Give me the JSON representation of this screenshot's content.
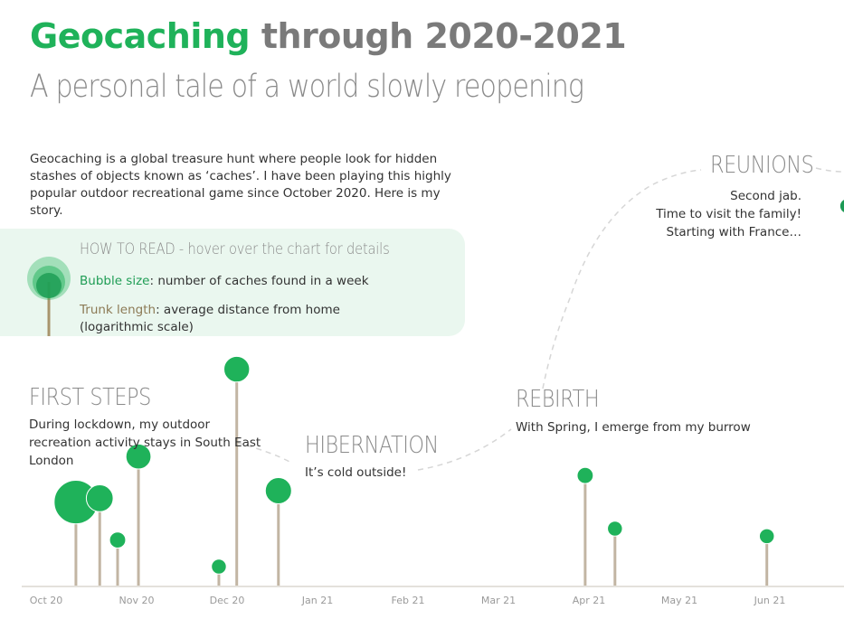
{
  "header": {
    "title_brand": "Geocaching",
    "title_rest": " through 2020-2021",
    "subtitle": "A personal tale of a world slowly reopening"
  },
  "intro": "Geocaching is a global treasure hunt where people look for hidden stashes of objects known as ‘caches’. I have been playing this highly popular outdoor recreational game since October 2020. Here is my story.",
  "howto": {
    "title": "HOW TO READ - hover over the chart for details",
    "size_key": "Bubble size",
    "size_text": ": number of caches found in a week",
    "trunk_key": "Trunk length",
    "trunk_text": ": average distance from home (logarithmic scale)"
  },
  "annotations": {
    "first_steps": {
      "heading": "FIRST STEPS",
      "text": "During lockdown, my outdoor recreation activity stays in South East London"
    },
    "hibernation": {
      "heading": "HIBERNATION",
      "text": "It’s cold outside!"
    },
    "rebirth": {
      "heading": "REBIRTH",
      "text": "With Spring, I emerge from my burrow"
    },
    "reunions": {
      "heading": "REUNIONS",
      "text_lines": [
        "Second jab.",
        "Time to visit the family!",
        "Starting with France…"
      ]
    }
  },
  "colors": {
    "bubble": "#1fb25a",
    "trunk": "#c2b5a3",
    "axis": "#c9c3b8",
    "ticks": "#9a9a9a",
    "box": "#eaf7ef"
  },
  "chart_data": {
    "type": "scatter",
    "encoding": "tree: bubble size = caches found in a week, trunk length = average distance from home (log scale)",
    "x_ticks": [
      "Oct 20",
      "Nov 20",
      "Dec 20",
      "Jan 21",
      "Feb 21",
      "Mar 21",
      "Apr 21",
      "May 21",
      "Jun 21"
    ],
    "points": [
      {
        "date": "2020-10-11",
        "trunk": 0.22,
        "size": 7.3
      },
      {
        "date": "2020-10-19",
        "trunk": 0.23,
        "size": 4.5
      },
      {
        "date": "2020-10-25",
        "trunk": 0.12,
        "size": 2.7
      },
      {
        "date": "2020-11-01",
        "trunk": 0.34,
        "size": 4.2
      },
      {
        "date": "2020-11-28",
        "trunk": 0.05,
        "size": 2.5
      },
      {
        "date": "2020-12-04",
        "trunk": 0.57,
        "size": 4.3
      },
      {
        "date": "2020-12-18",
        "trunk": 0.25,
        "size": 4.4
      },
      {
        "date": "2021-03-31",
        "trunk": 0.29,
        "size": 2.7
      },
      {
        "date": "2021-04-10",
        "trunk": 0.15,
        "size": 2.5
      },
      {
        "date": "2021-05-31",
        "trunk": 0.13,
        "size": 2.5
      },
      {
        "date": "2021-06-27",
        "trunk": 1.0,
        "size": 2.5
      }
    ]
  }
}
